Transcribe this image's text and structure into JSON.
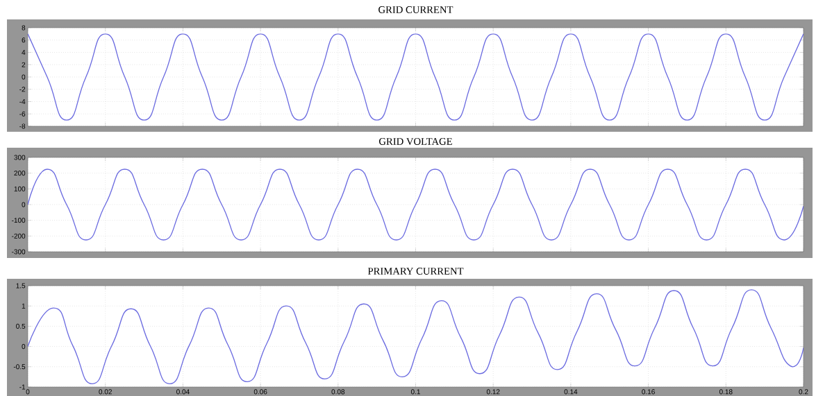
{
  "chart_data": [
    {
      "type": "line",
      "title": "GRID CURRENT",
      "xlim": [
        0,
        0.2
      ],
      "xticks": [
        0,
        0.02,
        0.04,
        0.06,
        0.08,
        0.1,
        0.12,
        0.14,
        0.16,
        0.18,
        0.2
      ],
      "ylim": [
        -8,
        8
      ],
      "yticks": [
        -8,
        -6,
        -4,
        -2,
        0,
        2,
        4,
        6,
        8
      ],
      "grid": true,
      "tick_labels": "y",
      "x": [
        0,
        0.005,
        0.01,
        0.015,
        0.02,
        0.025,
        0.03,
        0.035,
        0.04,
        0.045,
        0.05,
        0.055,
        0.06,
        0.065,
        0.07,
        0.075,
        0.08,
        0.085,
        0.09,
        0.095,
        0.1,
        0.105,
        0.11,
        0.115,
        0.12,
        0.125,
        0.13,
        0.135,
        0.14,
        0.145,
        0.15,
        0.155,
        0.16,
        0.165,
        0.17,
        0.175,
        0.18,
        0.185,
        0.19,
        0.195,
        0.2
      ],
      "series": [
        {
          "color": "#6b6be0",
          "values": [
            7,
            0,
            -7,
            0,
            7,
            0,
            -7,
            0,
            7,
            0,
            -7,
            0,
            7,
            0,
            -7,
            0,
            7,
            0,
            -7,
            0,
            7,
            0,
            -7,
            0,
            7,
            0,
            -7,
            0,
            7,
            0,
            -7,
            0,
            7,
            0,
            -7,
            0,
            7,
            0,
            -7,
            0,
            7
          ]
        }
      ]
    },
    {
      "type": "line",
      "title": "GRID VOLTAGE",
      "xlim": [
        0,
        0.2
      ],
      "xticks": [
        0,
        0.02,
        0.04,
        0.06,
        0.08,
        0.1,
        0.12,
        0.14,
        0.16,
        0.18,
        0.2
      ],
      "ylim": [
        -300,
        300
      ],
      "yticks": [
        -300,
        -200,
        -100,
        0,
        100,
        200,
        300
      ],
      "grid": true,
      "tick_labels": "y",
      "x": [
        0,
        0.005,
        0.01,
        0.015,
        0.02,
        0.025,
        0.03,
        0.035,
        0.04,
        0.045,
        0.05,
        0.055,
        0.06,
        0.065,
        0.07,
        0.075,
        0.08,
        0.085,
        0.09,
        0.095,
        0.1,
        0.105,
        0.11,
        0.115,
        0.12,
        0.125,
        0.13,
        0.135,
        0.14,
        0.145,
        0.15,
        0.155,
        0.16,
        0.165,
        0.17,
        0.175,
        0.18,
        0.185,
        0.19,
        0.195,
        0.2
      ],
      "series": [
        {
          "color": "#6b6be0",
          "values": [
            0,
            225,
            0,
            -225,
            0,
            225,
            0,
            -225,
            0,
            225,
            0,
            -225,
            0,
            225,
            0,
            -225,
            0,
            225,
            0,
            -225,
            0,
            225,
            0,
            -225,
            0,
            225,
            0,
            -225,
            0,
            225,
            0,
            -225,
            0,
            225,
            0,
            -225,
            0,
            225,
            0,
            -225,
            -10
          ]
        }
      ]
    },
    {
      "type": "line",
      "title": "PRIMARY CURRENT",
      "xlim": [
        0,
        0.2
      ],
      "xticks": [
        0,
        0.02,
        0.04,
        0.06,
        0.08,
        0.1,
        0.12,
        0.14,
        0.16,
        0.18,
        0.2
      ],
      "ylim": [
        -1,
        1.5
      ],
      "yticks": [
        -1,
        -0.5,
        0,
        0.5,
        1,
        1.5
      ],
      "grid": true,
      "x": [
        0,
        0.0066,
        0.0116,
        0.0166,
        0.0216,
        0.0266,
        0.0316,
        0.0366,
        0.0416,
        0.0466,
        0.0516,
        0.0566,
        0.0616,
        0.0666,
        0.0716,
        0.0766,
        0.0816,
        0.0866,
        0.0916,
        0.0966,
        0.1016,
        0.1066,
        0.1116,
        0.1166,
        0.1216,
        0.1266,
        0.1316,
        0.1366,
        0.1416,
        0.1466,
        0.1516,
        0.1566,
        0.1616,
        0.1666,
        0.1716,
        0.1766,
        0.1816,
        0.1866,
        0.1916,
        0.1966,
        0.2
      ],
      "series": [
        {
          "color": "#6b6be0",
          "values": [
            0,
            0.95,
            0.02,
            -0.92,
            0.01,
            0.93,
            0.01,
            -0.92,
            0.02,
            0.95,
            0.04,
            -0.87,
            0.07,
            1.0,
            0.1,
            -0.8,
            0.13,
            1.05,
            0.15,
            -0.75,
            0.19,
            1.13,
            0.23,
            -0.67,
            0.28,
            1.22,
            0.33,
            -0.57,
            0.37,
            1.3,
            0.41,
            -0.48,
            0.45,
            1.38,
            0.45,
            -0.48,
            0.46,
            1.4,
            0.46,
            -0.48,
            -0.03
          ]
        }
      ]
    }
  ]
}
